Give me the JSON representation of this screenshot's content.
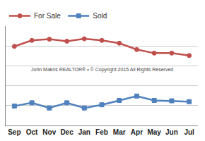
{
  "chart_data": {
    "type": "line",
    "categories": [
      "Sep",
      "Oct",
      "Nov",
      "Dec",
      "Jan",
      "Feb",
      "Mar",
      "Apr",
      "May",
      "Jun",
      "Jul"
    ],
    "series": [
      {
        "name": "For Sale",
        "color": "#c0504d",
        "marker": "circle",
        "values": [
          199,
          214,
          217,
          212,
          218,
          214,
          207,
          191,
          182,
          182,
          176
        ]
      },
      {
        "name": "Sold",
        "color": "#4f81bd",
        "marker": "square",
        "values": [
          49,
          57,
          44,
          57,
          44,
          52,
          63,
          74,
          63,
          62,
          60
        ]
      }
    ],
    "annotations": [
      "John Makris REALTOR® • © Copyright 2015 All Rights Reserved"
    ],
    "ylim": [
      0,
      250
    ],
    "yticks": [
      0,
      50,
      100,
      150,
      200,
      250
    ],
    "grid": true,
    "legend": "top left",
    "tick_labels": "x"
  }
}
